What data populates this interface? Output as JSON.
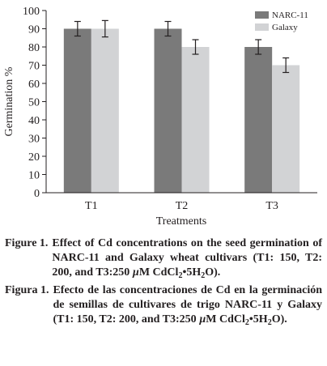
{
  "chart_data": {
    "type": "bar",
    "ylabel": "Germination %",
    "xlabel": "Treatments",
    "categories": [
      "T1",
      "T2",
      "T3"
    ],
    "ylim": [
      0,
      100
    ],
    "yticks": [
      0,
      10,
      20,
      30,
      40,
      50,
      60,
      70,
      80,
      90,
      100
    ],
    "legend_position": "top-right",
    "error_bars": true,
    "series": [
      {
        "name": "NARC-11",
        "color": "#7a7a7a",
        "values": [
          90,
          90,
          80
        ],
        "errors": [
          4,
          4,
          4
        ]
      },
      {
        "name": "Galaxy",
        "color": "#d2d3d5",
        "values": [
          90,
          80,
          70
        ],
        "errors": [
          4.5,
          4,
          4
        ]
      }
    ]
  },
  "captions": {
    "en": {
      "label": "Figure 1.",
      "text": "Effect of Cd concentrations on the seed germination of NARC-11 and Galaxy wheat cultivars (T1: 150, T2: 200, and T3:250 ",
      "mu": "µ",
      "unit": "M CdCl",
      "sub1": "2",
      "mid": "•5H",
      "sub2": "2",
      "end": "O)."
    },
    "es": {
      "label": "Figura 1.",
      "text": "Efecto de las concentraciones de Cd en la germinación de semillas de cultivares de trigo NARC-11 y Galaxy (T1: 150, T2: 200, and T3:250 ",
      "mu": "µ",
      "unit": "M CdCl",
      "sub1": "2",
      "mid": "•5H",
      "sub2": "2",
      "end": "O)."
    }
  }
}
